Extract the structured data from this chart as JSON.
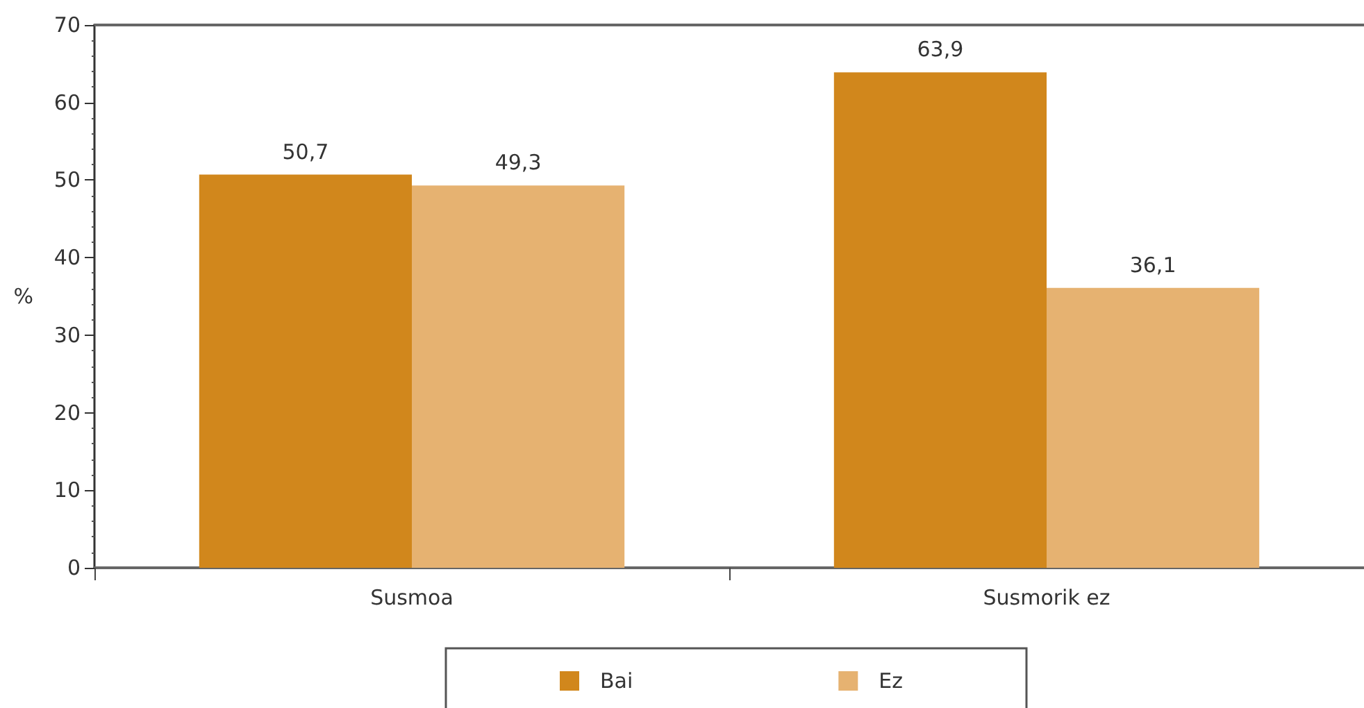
{
  "chart_data": {
    "type": "bar",
    "categories": [
      "Susmoa",
      "Susmorik ez"
    ],
    "series": [
      {
        "name": "Bai",
        "color": "#d1871c",
        "values": [
          50.7,
          63.9
        ],
        "value_labels": [
          "50,7",
          "63,9"
        ]
      },
      {
        "name": "Ez",
        "color": "#e6b271",
        "values": [
          49.3,
          36.1
        ],
        "value_labels": [
          "49,3",
          "36,1"
        ]
      }
    ],
    "ylabel": "%",
    "ylim": [
      0,
      70
    ],
    "yticks": [
      0,
      10,
      20,
      30,
      40,
      50,
      60,
      70
    ],
    "grid": false,
    "legend": "bottom"
  }
}
